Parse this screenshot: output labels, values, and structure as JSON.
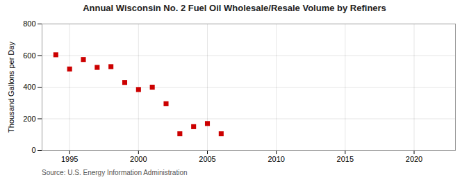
{
  "chart_data": {
    "type": "scatter",
    "title": "Annual Wisconsin No. 2 Fuel Oil Wholesale/Resale Volume by Refiners",
    "ylabel": "Thousand Gallons per Day",
    "source": "Source: U.S. Energy Information Administration",
    "x": [
      1994,
      1995,
      1996,
      1997,
      1998,
      1999,
      2000,
      2001,
      2002,
      2003,
      2004,
      2005,
      2006
    ],
    "values": [
      605,
      515,
      575,
      525,
      530,
      430,
      385,
      400,
      295,
      105,
      150,
      170,
      105
    ],
    "color": "#cc0000",
    "marker": "square",
    "xlim": [
      1993,
      2023
    ],
    "ylim": [
      0,
      800
    ],
    "xticks": [
      1995,
      2000,
      2005,
      2010,
      2015,
      2020
    ],
    "yticks": [
      0,
      200,
      400,
      600,
      800
    ],
    "grid": true
  }
}
